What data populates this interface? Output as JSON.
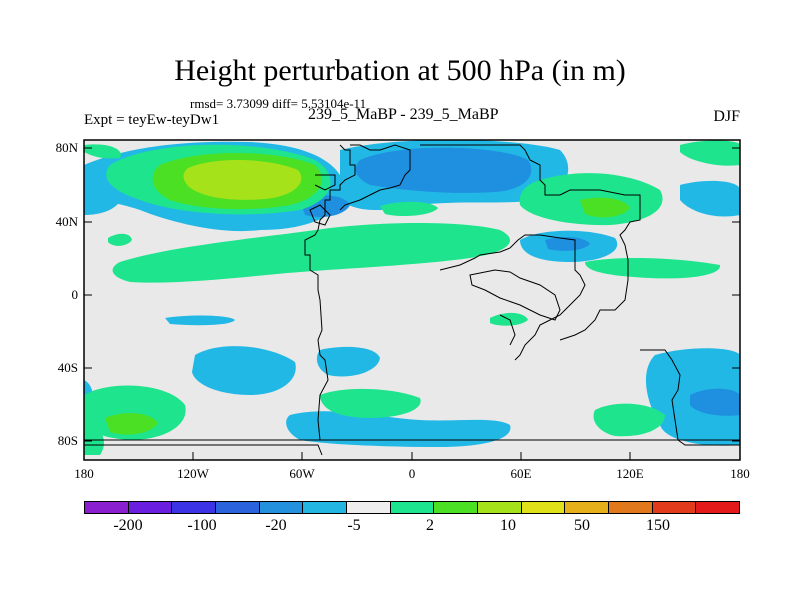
{
  "title": "Height perturbation at 500 hPa (in m)",
  "stats": "rmsd= 3.73099 diff= 5.53104e-11",
  "expt": "Expt = teyEw-teyDw1",
  "subtitle": "239_5_MaBP - 239_5_MaBP",
  "season": "DJF",
  "lat_labels": [
    "80N",
    "40N",
    "0",
    "40S",
    "80S"
  ],
  "lon_labels": [
    "180",
    "120W",
    "60W",
    "0",
    "60E",
    "120E",
    "180"
  ],
  "colorbar": {
    "colors": [
      "#8a1fd0",
      "#6a1fe0",
      "#3d33e6",
      "#2a63db",
      "#2391dd",
      "#23b6e3",
      "#eeeeee",
      "#1de48f",
      "#4be023",
      "#a6e21a",
      "#e1e11a",
      "#e6b01a",
      "#e2781c",
      "#e13b1c",
      "#e41a1a"
    ],
    "labels": [
      "-200",
      "-100",
      "-20",
      "-5",
      "2",
      "10",
      "50",
      "150"
    ]
  }
}
